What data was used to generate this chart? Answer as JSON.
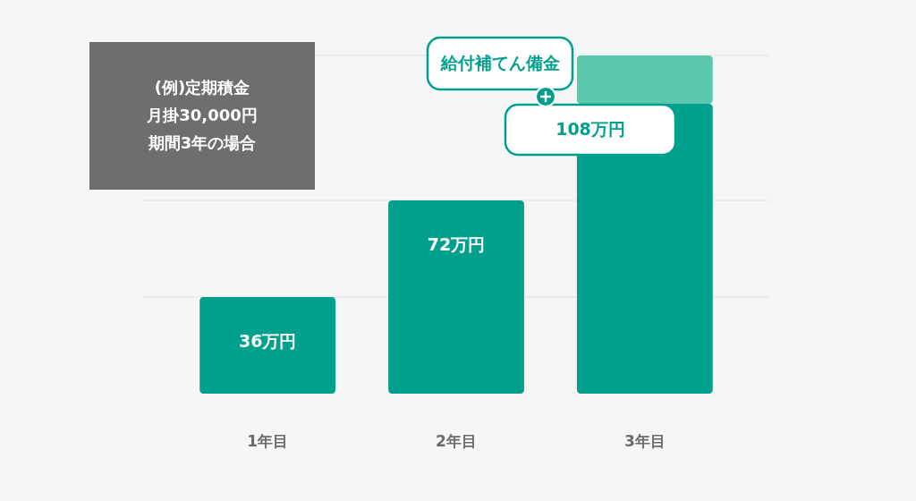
{
  "chart_data": {
    "type": "bar",
    "stacked": true,
    "categories": [
      "1年目",
      "2年目",
      "3年目"
    ],
    "series": [
      {
        "color": "#00a08c",
        "values": [
          36,
          72,
          108
        ],
        "value_labels": [
          "36万円",
          "72万円",
          "108万円"
        ]
      },
      {
        "name": "給付補てん備金",
        "color": "#5bc8ad",
        "values": [
          null,
          null,
          18
        ]
      }
    ],
    "ref_lines": [
      {
        "axis": "y",
        "value": 36,
        "color": "#e2e4e4"
      },
      {
        "axis": "y",
        "value": 72,
        "color": "#e2e4e4"
      },
      {
        "axis": "y",
        "value": 126,
        "color": "#e2e4e4"
      }
    ],
    "tick_labels": "x",
    "annotations": [
      "(例)定期積金",
      "月掛30,000円",
      "期間3年の場合"
    ]
  }
}
